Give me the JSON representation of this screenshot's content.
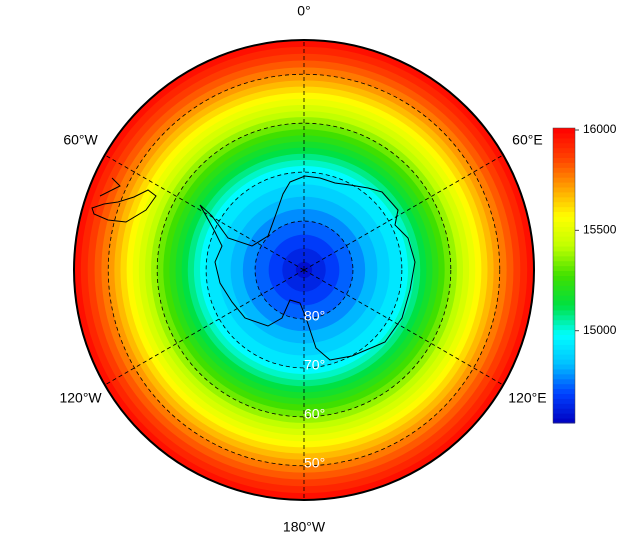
{
  "chart_data": {
    "type": "polar-contour",
    "lon_ticks": [
      {
        "value": 0,
        "label": "0°"
      },
      {
        "value": 60,
        "label": "60°E"
      },
      {
        "value": 120,
        "label": "120°E"
      },
      {
        "value": 180,
        "label": "180°W"
      },
      {
        "value": 240,
        "label": "120°W"
      },
      {
        "value": 300,
        "label": "60°W"
      }
    ],
    "lat_ticks": [
      {
        "value": 80,
        "label": "80°"
      },
      {
        "value": 70,
        "label": "70°"
      },
      {
        "value": 60,
        "label": "60°"
      },
      {
        "value": 50,
        "label": "50°"
      }
    ],
    "lat_lim": [
      90,
      43
    ],
    "field": {
      "lat": [
        90,
        80,
        70,
        60,
        50,
        43
      ],
      "values": [
        14570,
        14750,
        14950,
        15350,
        15750,
        16000
      ]
    },
    "contour_interval": 50,
    "zlim": [
      14540,
      16010
    ],
    "zticks": [
      15000,
      15500,
      16000
    ],
    "colormap": [
      "#0000c0",
      "#0040ff",
      "#00c0ff",
      "#00ffff",
      "#00e040",
      "#40e000",
      "#c0ff00",
      "#ffff00",
      "#ffa000",
      "#ff4000",
      "#ff0000"
    ]
  }
}
